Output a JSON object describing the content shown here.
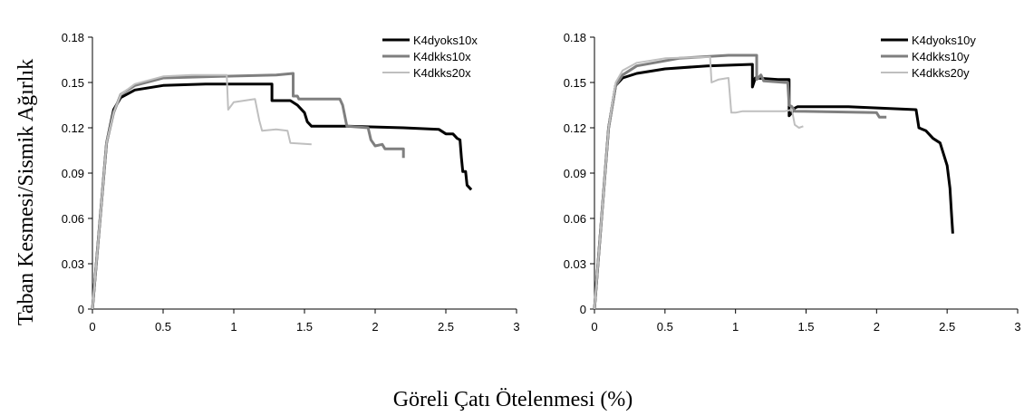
{
  "figure": {
    "ylabel": "Taban Kesmesi/Sismik Ağırlık",
    "xlabel": "Göreli Çatı Ötelenmesi (%)"
  },
  "chart_data": [
    {
      "type": "line",
      "xlim": [
        0,
        3
      ],
      "ylim": [
        0,
        0.18
      ],
      "xticks": [
        "0",
        "0.5",
        "1",
        "1.5",
        "2",
        "2.5",
        "3"
      ],
      "yticks": [
        "0",
        "0.03",
        "0.06",
        "0.09",
        "0.12",
        "0.15",
        "0.18"
      ],
      "grid": false,
      "legend_position": "top-right",
      "series": [
        {
          "name": "K4dyoks10x",
          "color": "#000000",
          "width": 3,
          "points": [
            [
              0,
              0
            ],
            [
              0.05,
              0.055
            ],
            [
              0.1,
              0.11
            ],
            [
              0.15,
              0.132
            ],
            [
              0.2,
              0.14
            ],
            [
              0.3,
              0.145
            ],
            [
              0.5,
              0.148
            ],
            [
              0.8,
              0.149
            ],
            [
              1.27,
              0.149
            ],
            [
              1.27,
              0.138
            ],
            [
              1.4,
              0.138
            ],
            [
              1.45,
              0.135
            ],
            [
              1.5,
              0.13
            ],
            [
              1.52,
              0.124
            ],
            [
              1.55,
              0.121
            ],
            [
              1.8,
              0.121
            ],
            [
              2.2,
              0.12
            ],
            [
              2.45,
              0.119
            ],
            [
              2.5,
              0.116
            ],
            [
              2.55,
              0.116
            ],
            [
              2.58,
              0.113
            ],
            [
              2.6,
              0.112
            ],
            [
              2.61,
              0.1
            ],
            [
              2.62,
              0.091
            ],
            [
              2.64,
              0.091
            ],
            [
              2.65,
              0.082
            ],
            [
              2.68,
              0.079
            ]
          ]
        },
        {
          "name": "K4dkks10x",
          "color": "#7f7f7f",
          "width": 3,
          "points": [
            [
              0,
              0
            ],
            [
              0.05,
              0.055
            ],
            [
              0.1,
              0.11
            ],
            [
              0.15,
              0.13
            ],
            [
              0.2,
              0.142
            ],
            [
              0.3,
              0.148
            ],
            [
              0.5,
              0.153
            ],
            [
              0.9,
              0.154
            ],
            [
              1.3,
              0.155
            ],
            [
              1.42,
              0.156
            ],
            [
              1.42,
              0.141
            ],
            [
              1.45,
              0.141
            ],
            [
              1.46,
              0.139
            ],
            [
              1.75,
              0.139
            ],
            [
              1.77,
              0.135
            ],
            [
              1.8,
              0.121
            ],
            [
              1.95,
              0.12
            ],
            [
              1.97,
              0.112
            ],
            [
              2.0,
              0.108
            ],
            [
              2.05,
              0.109
            ],
            [
              2.07,
              0.106
            ],
            [
              2.2,
              0.106
            ],
            [
              2.2,
              0.1
            ]
          ]
        },
        {
          "name": "K4dkks20x",
          "color": "#bfbfbf",
          "width": 2,
          "points": [
            [
              0,
              0
            ],
            [
              0.05,
              0.055
            ],
            [
              0.1,
              0.11
            ],
            [
              0.15,
              0.13
            ],
            [
              0.2,
              0.142
            ],
            [
              0.3,
              0.149
            ],
            [
              0.5,
              0.154
            ],
            [
              0.7,
              0.155
            ],
            [
              0.95,
              0.155
            ],
            [
              0.96,
              0.132
            ],
            [
              1.0,
              0.137
            ],
            [
              1.15,
              0.139
            ],
            [
              1.18,
              0.125
            ],
            [
              1.2,
              0.118
            ],
            [
              1.3,
              0.119
            ],
            [
              1.38,
              0.118
            ],
            [
              1.4,
              0.11
            ],
            [
              1.55,
              0.109
            ]
          ]
        }
      ]
    },
    {
      "type": "line",
      "xlim": [
        0,
        3
      ],
      "ylim": [
        0,
        0.18
      ],
      "xticks": [
        "0",
        "0.5",
        "1",
        "1.5",
        "2",
        "2.5",
        "3"
      ],
      "yticks": [
        "0",
        "0.03",
        "0.06",
        "0.09",
        "0.12",
        "0.15",
        "0.18"
      ],
      "grid": false,
      "legend_position": "top-right",
      "series": [
        {
          "name": "K4dyoks10y",
          "color": "#000000",
          "width": 3,
          "points": [
            [
              0,
              0
            ],
            [
              0.05,
              0.06
            ],
            [
              0.1,
              0.12
            ],
            [
              0.15,
              0.148
            ],
            [
              0.2,
              0.153
            ],
            [
              0.3,
              0.156
            ],
            [
              0.5,
              0.159
            ],
            [
              0.8,
              0.161
            ],
            [
              1.12,
              0.162
            ],
            [
              1.12,
              0.147
            ],
            [
              1.14,
              0.153
            ],
            [
              1.3,
              0.152
            ],
            [
              1.38,
              0.152
            ],
            [
              1.38,
              0.128
            ],
            [
              1.4,
              0.13
            ],
            [
              1.42,
              0.133
            ],
            [
              1.44,
              0.134
            ],
            [
              1.8,
              0.134
            ],
            [
              2.28,
              0.132
            ],
            [
              2.3,
              0.12
            ],
            [
              2.35,
              0.118
            ],
            [
              2.4,
              0.113
            ],
            [
              2.45,
              0.11
            ],
            [
              2.5,
              0.095
            ],
            [
              2.52,
              0.08
            ],
            [
              2.53,
              0.065
            ],
            [
              2.54,
              0.05
            ]
          ]
        },
        {
          "name": "K4dkks10y",
          "color": "#7f7f7f",
          "width": 3,
          "points": [
            [
              0,
              0
            ],
            [
              0.05,
              0.06
            ],
            [
              0.1,
              0.12
            ],
            [
              0.15,
              0.148
            ],
            [
              0.2,
              0.155
            ],
            [
              0.3,
              0.161
            ],
            [
              0.6,
              0.166
            ],
            [
              0.95,
              0.168
            ],
            [
              1.15,
              0.168
            ],
            [
              1.15,
              0.152
            ],
            [
              1.18,
              0.155
            ],
            [
              1.2,
              0.151
            ],
            [
              1.35,
              0.15
            ],
            [
              1.37,
              0.15
            ],
            [
              1.38,
              0.135
            ],
            [
              1.4,
              0.134
            ],
            [
              1.42,
              0.131
            ],
            [
              2.0,
              0.13
            ],
            [
              2.02,
              0.127
            ],
            [
              2.07,
              0.127
            ]
          ]
        },
        {
          "name": "K4dkks20y",
          "color": "#bfbfbf",
          "width": 2,
          "points": [
            [
              0,
              0
            ],
            [
              0.05,
              0.06
            ],
            [
              0.1,
              0.12
            ],
            [
              0.15,
              0.15
            ],
            [
              0.2,
              0.158
            ],
            [
              0.3,
              0.163
            ],
            [
              0.5,
              0.166
            ],
            [
              0.82,
              0.167
            ],
            [
              0.83,
              0.15
            ],
            [
              0.88,
              0.152
            ],
            [
              0.95,
              0.153
            ],
            [
              0.97,
              0.13
            ],
            [
              1.0,
              0.13
            ],
            [
              1.05,
              0.131
            ],
            [
              1.35,
              0.131
            ],
            [
              1.4,
              0.132
            ],
            [
              1.42,
              0.122
            ],
            [
              1.45,
              0.12
            ],
            [
              1.48,
              0.121
            ]
          ]
        }
      ]
    }
  ]
}
